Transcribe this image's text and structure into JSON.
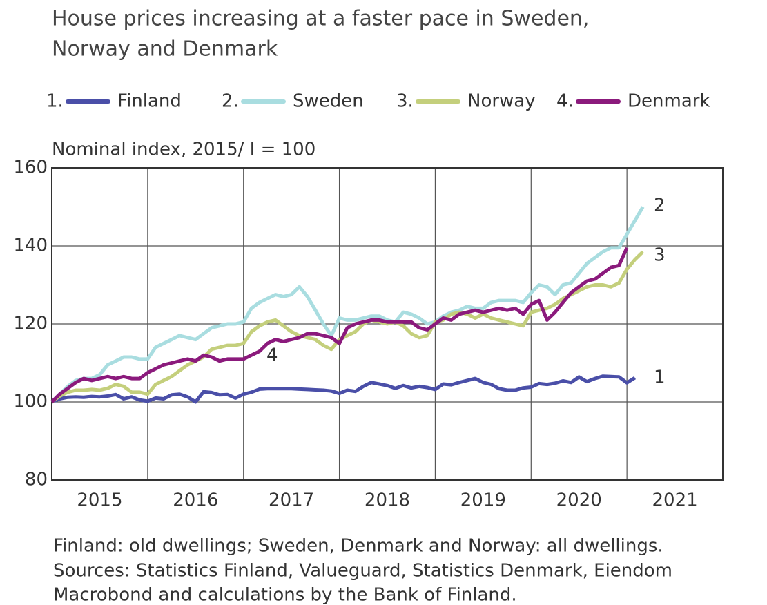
{
  "chart_data": {
    "type": "line",
    "title": [
      "House prices increasing at a faster pace in Sweden,",
      "Norway and Denmark"
    ],
    "y_label": "Nominal index, 2015/ I = 100",
    "notes": [
      "Finland: old dwellings; Sweden, Denmark and Norway: all dwellings.",
      "Sources: Statistics Finland, Valueguard, Statistics Denmark, Eiendom",
      "Macrobond and calculations by the Bank of Finland."
    ],
    "xlim": [
      2015,
      2022
    ],
    "xticks": [
      2016,
      2017,
      2018,
      2019,
      2020,
      2021
    ],
    "year_labels": [
      2015,
      2016,
      2017,
      2018,
      2019,
      2020,
      2021
    ],
    "ylim": [
      80,
      160
    ],
    "yticks": [
      80,
      100,
      120,
      140,
      160
    ],
    "grid": true,
    "x": [
      2015,
      2015.083,
      2015.167,
      2015.25,
      2015.333,
      2015.417,
      2015.5,
      2015.583,
      2015.667,
      2015.75,
      2015.833,
      2015.917,
      2016,
      2016.083,
      2016.167,
      2016.25,
      2016.333,
      2016.417,
      2016.5,
      2016.583,
      2016.667,
      2016.75,
      2016.833,
      2016.917,
      2017,
      2017.083,
      2017.167,
      2017.25,
      2017.333,
      2017.417,
      2017.5,
      2017.583,
      2017.667,
      2017.75,
      2017.833,
      2017.917,
      2018,
      2018.083,
      2018.167,
      2018.25,
      2018.333,
      2018.417,
      2018.5,
      2018.583,
      2018.667,
      2018.75,
      2018.833,
      2018.917,
      2019,
      2019.083,
      2019.167,
      2019.25,
      2019.333,
      2019.417,
      2019.5,
      2019.583,
      2019.667,
      2019.75,
      2019.833,
      2019.917,
      2020,
      2020.083,
      2020.167,
      2020.25,
      2020.333,
      2020.417,
      2020.5,
      2020.583,
      2020.667,
      2020.75,
      2020.833,
      2020.917,
      2021,
      2021.083,
      2021.167
    ],
    "series": [
      {
        "name": "Finland",
        "legend_key": "1.",
        "color": "#4a4fa8",
        "values": [
          100,
          100.8,
          101.2,
          101.3,
          101.2,
          101.4,
          101.3,
          101.5,
          101.9,
          100.8,
          101.3,
          100.5,
          100.2,
          101,
          100.8,
          101.8,
          102,
          101.3,
          100,
          102.6,
          102.4,
          101.8,
          101.9,
          101,
          102,
          102.5,
          103.3,
          103.4,
          103.4,
          103.4,
          103.4,
          103.3,
          103.2,
          103.1,
          103,
          102.8,
          102.2,
          103,
          102.7,
          104,
          105,
          104.6,
          104.2,
          103.5,
          104.2,
          103.6,
          104,
          103.7,
          103.2,
          104.6,
          104.4,
          105,
          105.5,
          106,
          105,
          104.5,
          103.4,
          103,
          103,
          103.6,
          103.8,
          104.7,
          104.5,
          104.8,
          105.4,
          105,
          106.4,
          105.2,
          106,
          106.6,
          106.5,
          106.4,
          104.9,
          106.2,
          null
        ]
      },
      {
        "name": "Sweden",
        "legend_key": "2.",
        "color": "#a9dde0",
        "values": [
          100,
          102,
          104,
          105.5,
          106,
          106,
          107,
          109.5,
          110.5,
          111.5,
          111.5,
          111,
          111,
          114,
          115,
          116,
          117,
          116.5,
          116,
          117.5,
          119,
          119.5,
          120,
          120,
          120.5,
          124,
          125.5,
          126.5,
          127.5,
          127,
          127.5,
          129.5,
          127,
          123.5,
          120,
          117,
          121.5,
          121,
          121,
          121.5,
          122,
          122,
          121,
          120.5,
          123,
          122.5,
          121.5,
          120,
          120.5,
          122,
          123,
          123.5,
          124.5,
          124,
          124,
          125.5,
          126,
          126,
          126,
          125.5,
          128,
          130,
          129.5,
          127.5,
          130,
          130.5,
          133,
          135.5,
          137,
          138.5,
          139.5,
          139.5,
          143,
          146.5,
          150
        ]
      },
      {
        "name": "Norway",
        "legend_key": "3.",
        "color": "#c4cf7c",
        "values": [
          100,
          101.5,
          102.5,
          103,
          103,
          103.2,
          103,
          103.5,
          104.5,
          104,
          102.5,
          102.5,
          102,
          104.5,
          105.5,
          106.5,
          108,
          109.5,
          110.5,
          111.5,
          113.5,
          114,
          114.5,
          114.5,
          115,
          118,
          119.5,
          120.5,
          121,
          119.5,
          118,
          117,
          116.5,
          116,
          114.5,
          113.5,
          116,
          117,
          118,
          120,
          121,
          120.5,
          120,
          120.5,
          119.5,
          117.5,
          116.5,
          117,
          120.5,
          121,
          122.5,
          123,
          122.5,
          121.5,
          122.5,
          121.5,
          121,
          120.5,
          120,
          119.5,
          123,
          123.5,
          124,
          125,
          126.5,
          127.5,
          128.5,
          129.5,
          130,
          130,
          129.5,
          130.5,
          134,
          136.5,
          138.5
        ]
      },
      {
        "name": "Denmark",
        "legend_key": "4.",
        "color": "#8b1a7c",
        "values": [
          100,
          102,
          103.5,
          105,
          106,
          105.5,
          106,
          106.5,
          106,
          106.5,
          106,
          106,
          107.5,
          108.5,
          109.5,
          110,
          110.5,
          111,
          110.5,
          112,
          111.5,
          110.5,
          111,
          111,
          111,
          112,
          113,
          115,
          116,
          115.5,
          116,
          116.5,
          117.5,
          117.5,
          117,
          116.5,
          115,
          119,
          120,
          120.5,
          121,
          121,
          120.5,
          120.5,
          120.5,
          120.5,
          119,
          118.5,
          120,
          121.5,
          121,
          122.5,
          123,
          123.5,
          123,
          123.5,
          124,
          123.5,
          124,
          122.5,
          125,
          126,
          121,
          123,
          125.5,
          128,
          129.5,
          131,
          131.5,
          133,
          134.5,
          135,
          139.5,
          null,
          null
        ]
      }
    ],
    "annotations": [
      "1",
      "2",
      "3",
      "4"
    ]
  }
}
